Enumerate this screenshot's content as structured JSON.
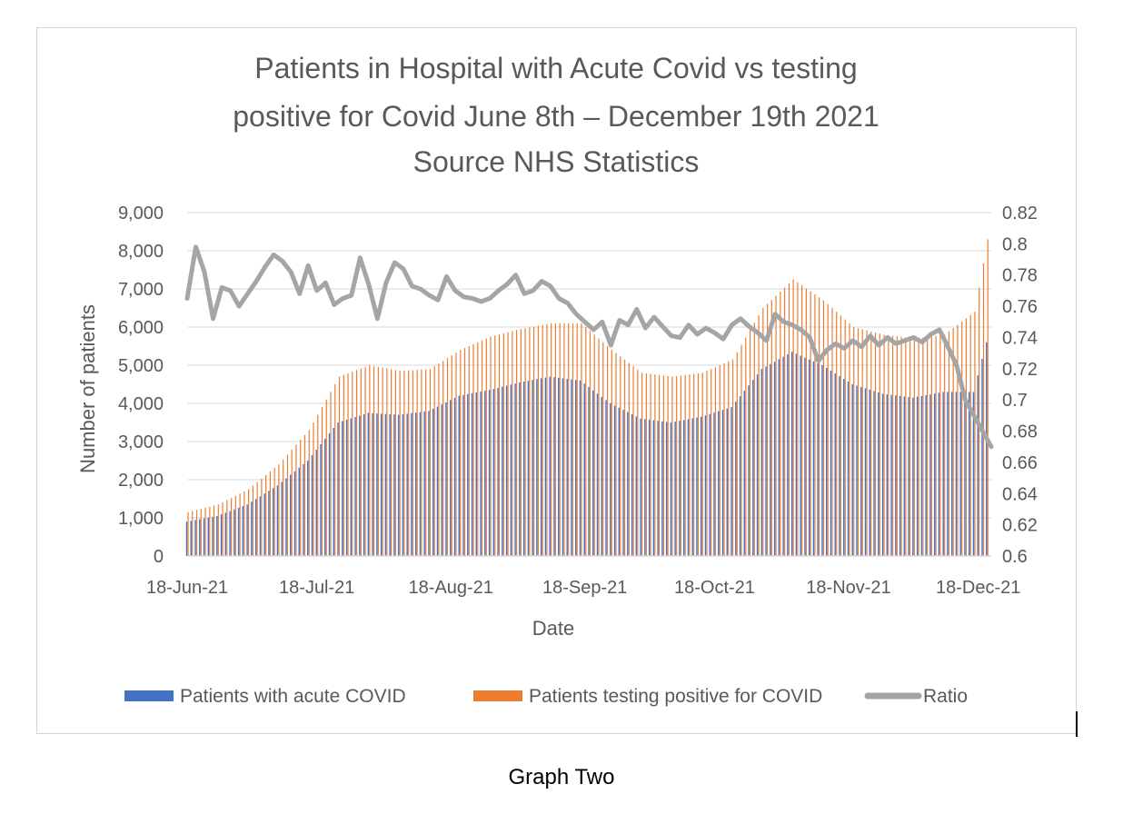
{
  "caption": "Graph Two",
  "colors": {
    "acute": "#4472c4",
    "positive": "#ed7d31",
    "ratio": "#a5a5a5",
    "text": "#595959",
    "axis": "#d9d9d9"
  },
  "chart_data": {
    "type": "bar",
    "title": [
      "Patients in Hospital with Acute Covid vs testing",
      "positive for Covid June 8th – December 19th 2021",
      "Source NHS Statistics"
    ],
    "xlabel": "Date",
    "ylabel": "Number of patients",
    "ylim": [
      0,
      9000
    ],
    "y_ticks": [
      "0",
      "1,000",
      "2,000",
      "3,000",
      "4,000",
      "5,000",
      "6,000",
      "7,000",
      "8,000",
      "9,000"
    ],
    "y2lim": [
      0.6,
      0.82
    ],
    "y2_ticks": [
      "0.6",
      "0.62",
      "0.64",
      "0.66",
      "0.68",
      "0.7",
      "0.72",
      "0.74",
      "0.76",
      "0.78",
      "0.8",
      "0.82"
    ],
    "x_ticks": [
      {
        "label": "18-Jun-21",
        "date": "2021-06-18"
      },
      {
        "label": "18-Jul-21",
        "date": "2021-07-18"
      },
      {
        "label": "18-Aug-21",
        "date": "2021-08-18"
      },
      {
        "label": "18-Sep-21",
        "date": "2021-09-18"
      },
      {
        "label": "18-Oct-21",
        "date": "2021-10-18"
      },
      {
        "label": "18-Nov-21",
        "date": "2021-11-18"
      },
      {
        "label": "18-Dec-21",
        "date": "2021-12-18"
      }
    ],
    "legend_position": "bottom",
    "series": [
      {
        "name": "Patients with acute COVID",
        "type": "bar",
        "x": [
          "2021-06-18",
          "2021-06-25",
          "2021-07-02",
          "2021-07-09",
          "2021-07-16",
          "2021-07-23",
          "2021-07-30",
          "2021-08-06",
          "2021-08-13",
          "2021-08-20",
          "2021-08-27",
          "2021-09-03",
          "2021-09-10",
          "2021-09-17",
          "2021-09-24",
          "2021-10-01",
          "2021-10-08",
          "2021-10-15",
          "2021-10-22",
          "2021-10-29",
          "2021-11-05",
          "2021-11-12",
          "2021-11-19",
          "2021-11-26",
          "2021-12-03",
          "2021-12-10",
          "2021-12-17",
          "2021-12-20"
        ],
        "values": [
          900,
          1050,
          1350,
          1850,
          2500,
          3500,
          3750,
          3700,
          3800,
          4200,
          4350,
          4550,
          4700,
          4600,
          4000,
          3600,
          3500,
          3650,
          3900,
          4900,
          5350,
          5000,
          4500,
          4250,
          4150,
          4300,
          4300,
          5600
        ]
      },
      {
        "name": "Patients testing positive for COVID",
        "type": "bar",
        "x": [
          "2021-06-18",
          "2021-06-25",
          "2021-07-02",
          "2021-07-09",
          "2021-07-16",
          "2021-07-23",
          "2021-07-30",
          "2021-08-06",
          "2021-08-13",
          "2021-08-20",
          "2021-08-27",
          "2021-09-03",
          "2021-09-10",
          "2021-09-17",
          "2021-09-24",
          "2021-10-01",
          "2021-10-08",
          "2021-10-15",
          "2021-10-22",
          "2021-10-29",
          "2021-11-05",
          "2021-11-12",
          "2021-11-19",
          "2021-11-26",
          "2021-12-03",
          "2021-12-10",
          "2021-12-17",
          "2021-12-20"
        ],
        "values": [
          1150,
          1350,
          1750,
          2400,
          3300,
          4700,
          5000,
          4850,
          4900,
          5400,
          5750,
          5950,
          6100,
          6100,
          5400,
          4800,
          4700,
          4800,
          5150,
          6500,
          7250,
          6700,
          6000,
          5800,
          5700,
          5800,
          6400,
          8300
        ]
      },
      {
        "name": "Ratio",
        "type": "line",
        "x": [
          "2021-06-18",
          "2021-06-20",
          "2021-06-22",
          "2021-06-24",
          "2021-06-26",
          "2021-06-28",
          "2021-06-30",
          "2021-07-02",
          "2021-07-04",
          "2021-07-06",
          "2021-07-08",
          "2021-07-10",
          "2021-07-12",
          "2021-07-14",
          "2021-07-16",
          "2021-07-18",
          "2021-07-20",
          "2021-07-22",
          "2021-07-24",
          "2021-07-26",
          "2021-07-28",
          "2021-07-30",
          "2021-08-01",
          "2021-08-03",
          "2021-08-05",
          "2021-08-07",
          "2021-08-09",
          "2021-08-11",
          "2021-08-13",
          "2021-08-15",
          "2021-08-17",
          "2021-08-19",
          "2021-08-21",
          "2021-08-23",
          "2021-08-25",
          "2021-08-27",
          "2021-08-29",
          "2021-08-31",
          "2021-09-02",
          "2021-09-04",
          "2021-09-06",
          "2021-09-08",
          "2021-09-10",
          "2021-09-12",
          "2021-09-14",
          "2021-09-16",
          "2021-09-18",
          "2021-09-20",
          "2021-09-22",
          "2021-09-24",
          "2021-09-26",
          "2021-09-28",
          "2021-09-30",
          "2021-10-02",
          "2021-10-04",
          "2021-10-06",
          "2021-10-08",
          "2021-10-10",
          "2021-10-12",
          "2021-10-14",
          "2021-10-16",
          "2021-10-18",
          "2021-10-20",
          "2021-10-22",
          "2021-10-24",
          "2021-10-26",
          "2021-10-28",
          "2021-10-30",
          "2021-11-01",
          "2021-11-03",
          "2021-11-05",
          "2021-11-07",
          "2021-11-09",
          "2021-11-11",
          "2021-11-13",
          "2021-11-15",
          "2021-11-17",
          "2021-11-19",
          "2021-11-21",
          "2021-11-23",
          "2021-11-25",
          "2021-11-27",
          "2021-11-29",
          "2021-12-01",
          "2021-12-03",
          "2021-12-05",
          "2021-12-07",
          "2021-12-09",
          "2021-12-11",
          "2021-12-13",
          "2021-12-15",
          "2021-12-17",
          "2021-12-19",
          "2021-12-21"
        ],
        "values": [
          0.765,
          0.798,
          0.782,
          0.752,
          0.772,
          0.77,
          0.76,
          0.768,
          0.776,
          0.785,
          0.793,
          0.789,
          0.782,
          0.768,
          0.786,
          0.77,
          0.775,
          0.761,
          0.765,
          0.767,
          0.791,
          0.774,
          0.752,
          0.775,
          0.788,
          0.784,
          0.773,
          0.771,
          0.767,
          0.764,
          0.779,
          0.77,
          0.766,
          0.765,
          0.763,
          0.765,
          0.77,
          0.774,
          0.78,
          0.768,
          0.77,
          0.776,
          0.773,
          0.765,
          0.762,
          0.755,
          0.75,
          0.745,
          0.75,
          0.735,
          0.751,
          0.748,
          0.758,
          0.746,
          0.753,
          0.747,
          0.741,
          0.74,
          0.748,
          0.742,
          0.746,
          0.743,
          0.739,
          0.748,
          0.752,
          0.747,
          0.743,
          0.738,
          0.755,
          0.75,
          0.748,
          0.745,
          0.74,
          0.725,
          0.732,
          0.736,
          0.733,
          0.738,
          0.734,
          0.741,
          0.735,
          0.74,
          0.736,
          0.738,
          0.74,
          0.737,
          0.742,
          0.745,
          0.734,
          0.722,
          0.7,
          0.69,
          0.68,
          0.67
        ]
      }
    ]
  }
}
